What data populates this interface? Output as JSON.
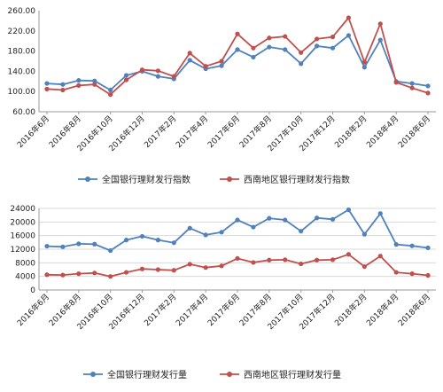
{
  "chart_data": [
    {
      "type": "line",
      "categories": [
        "2016年6月",
        "2016年7月",
        "2016年8月",
        "2016年9月",
        "2016年10月",
        "2016年11月",
        "2016年12月",
        "2017年1月",
        "2017年2月",
        "2017年3月",
        "2017年4月",
        "2017年5月",
        "2017年6月",
        "2017年7月",
        "2017年8月",
        "2017年9月",
        "2017年10月",
        "2017年11月",
        "2017年12月",
        "2018年1月",
        "2018年2月",
        "2018年3月",
        "2018年4月",
        "2018年5月",
        "2018年6月"
      ],
      "tick_labels": [
        "2016年6月",
        "2016年8月",
        "2016年10月",
        "2016年12月",
        "2017年2月",
        "2017年4月",
        "2017年6月",
        "2017年8月",
        "2017年10月",
        "2017年12月",
        "2018年2月",
        "2018年4月",
        "2018年6月"
      ],
      "y_tick_labels": [
        "60.00",
        "100.00",
        "140.00",
        "180.00",
        "220.00",
        "260.00"
      ],
      "ylim": [
        60,
        260
      ],
      "grid": false,
      "legend": "bottom",
      "series": [
        {
          "name": "全国银行理财发行指数",
          "color": "#4f81bd",
          "values": [
            116,
            114,
            122,
            121,
            103,
            132,
            140,
            130,
            125,
            162,
            145,
            151,
            183,
            168,
            188,
            183,
            155,
            190,
            186,
            211,
            148,
            202,
            120,
            116,
            111
          ]
        },
        {
          "name": "西南地区银行理财发行指数",
          "color": "#c0504d",
          "values": [
            105,
            103,
            112,
            114,
            94,
            123,
            143,
            141,
            130,
            176,
            150,
            160,
            214,
            186,
            206,
            209,
            177,
            204,
            208,
            246,
            158,
            234,
            118,
            107,
            97
          ]
        }
      ]
    },
    {
      "type": "line",
      "categories": [
        "2016年6月",
        "2016年7月",
        "2016年8月",
        "2016年9月",
        "2016年10月",
        "2016年11月",
        "2016年12月",
        "2017年1月",
        "2017年2月",
        "2017年3月",
        "2017年4月",
        "2017年5月",
        "2017年6月",
        "2017年7月",
        "2017年8月",
        "2017年9月",
        "2017年10月",
        "2017年11月",
        "2017年12月",
        "2018年1月",
        "2018年2月",
        "2018年3月",
        "2018年4月",
        "2018年5月",
        "2018年6月"
      ],
      "tick_labels": [
        "2016年6月",
        "2016年8月",
        "2016年10月",
        "2016年12月",
        "2017年2月",
        "2017年4月",
        "2017年6月",
        "2017年8月",
        "2017年10月",
        "2017年12月",
        "2018年2月",
        "2018年4月",
        "2018年6月"
      ],
      "y_tick_labels": [
        "0",
        "4000",
        "8000",
        "12000",
        "16000",
        "20000",
        "24000"
      ],
      "ylim": [
        0,
        24000
      ],
      "grid": true,
      "legend": "bottom",
      "series": [
        {
          "name": "全国银行理财发行量",
          "color": "#4f81bd",
          "values": [
            12900,
            12700,
            13600,
            13500,
            11600,
            14700,
            15800,
            14700,
            13900,
            18200,
            16200,
            17000,
            20600,
            18500,
            21100,
            20600,
            17300,
            21200,
            20800,
            23600,
            16400,
            22500,
            13400,
            13000,
            12400
          ]
        },
        {
          "name": "西南地区银行理财发行量",
          "color": "#c0504d",
          "values": [
            4500,
            4400,
            4800,
            5000,
            4000,
            5200,
            6200,
            6000,
            5800,
            7600,
            6600,
            7100,
            9300,
            8100,
            8800,
            8900,
            7700,
            8800,
            8900,
            10500,
            6900,
            10000,
            5200,
            4800,
            4300
          ]
        }
      ]
    }
  ]
}
